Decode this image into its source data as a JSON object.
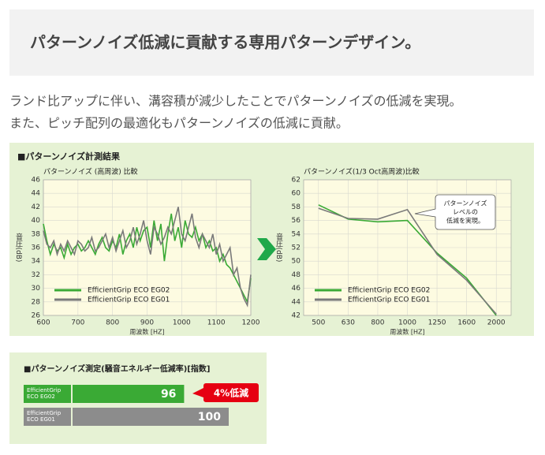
{
  "header": {
    "title": "パターンノイズ低減に貢献する専用パターンデザイン。"
  },
  "text": {
    "lines": [
      "ランド比アップに伴い、溝容積が減少したことでパターンノイズの低減を実現。",
      "また、ピッチ配列の最適化もパターンノイズの低減に貢献。"
    ]
  },
  "panel": {
    "title": "■パターンノイズ計測結果"
  },
  "chart_data": [
    {
      "type": "line",
      "title": "パターンノイズ (高周波) 比較",
      "x_label": "周波数 [HZ]",
      "y_label": "音圧(dB)",
      "x": [
        600,
        610,
        620,
        630,
        640,
        650,
        660,
        670,
        680,
        690,
        700,
        710,
        720,
        730,
        740,
        750,
        760,
        770,
        780,
        790,
        800,
        810,
        820,
        830,
        840,
        850,
        860,
        870,
        880,
        890,
        900,
        910,
        920,
        930,
        940,
        950,
        960,
        970,
        980,
        990,
        1000,
        1010,
        1020,
        1030,
        1040,
        1050,
        1060,
        1070,
        1080,
        1090,
        1100,
        1110,
        1120,
        1130,
        1140,
        1150,
        1160,
        1170,
        1180,
        1190,
        1200
      ],
      "series": [
        {
          "name": "EfficientGrip ECO EG02",
          "color": "#3aaa35",
          "values": [
            39.5,
            37,
            35,
            36.5,
            35.5,
            36,
            34.5,
            36.5,
            35,
            36,
            36.5,
            35.5,
            36,
            37,
            36,
            35,
            36.5,
            37.5,
            36,
            35.5,
            37,
            36,
            38,
            35,
            37,
            38,
            36,
            39,
            37,
            38.5,
            39,
            36,
            40,
            37,
            39.5,
            34,
            38,
            41,
            37,
            39,
            36,
            40,
            38,
            37.5,
            39,
            37,
            38,
            36,
            37,
            35.5,
            36,
            34,
            35,
            33.5,
            33,
            32,
            31,
            30,
            29,
            28,
            31.5
          ]
        },
        {
          "name": "EfficientGrip ECO EG01",
          "color": "#7a7a7a",
          "values": [
            38.5,
            36.5,
            36,
            37,
            35,
            36.5,
            35.5,
            37,
            36,
            35,
            37,
            36.5,
            35.5,
            36,
            37.5,
            35.5,
            36,
            37,
            38,
            36,
            37.5,
            35.5,
            37,
            38.5,
            36,
            37,
            39,
            36.5,
            38,
            40,
            37,
            35,
            39,
            38,
            36.5,
            37.5,
            39,
            38,
            40,
            42,
            38,
            37,
            39,
            41,
            37.5,
            36,
            38,
            37,
            36,
            38,
            35,
            36.5,
            34,
            35,
            36,
            32,
            33,
            30,
            28.5,
            27.5,
            32
          ]
        }
      ],
      "xlim": [
        600,
        1200
      ],
      "xticks": [
        600,
        700,
        800,
        900,
        1000,
        1100,
        1200
      ],
      "ylim": [
        26,
        46
      ],
      "yticks": [
        26,
        28,
        30,
        32,
        34,
        36,
        38,
        40,
        42,
        44,
        46
      ],
      "grid": true
    },
    {
      "type": "line",
      "title": "パターンノイズ(1/3 Oct高周波)比較",
      "x_label": "周波数 [HZ]",
      "y_label": "音圧(dB)",
      "categories": [
        "500",
        "630",
        "800",
        "1000",
        "1250",
        "1600",
        "2000"
      ],
      "series": [
        {
          "name": "EfficientGrip ECO EG02",
          "color": "#3aaa35",
          "values": [
            58.3,
            56.2,
            55.8,
            56.0,
            51.2,
            47.5,
            42.0
          ]
        },
        {
          "name": "EfficientGrip ECO EG01",
          "color": "#7a7a7a",
          "values": [
            57.8,
            56.3,
            56.2,
            57.6,
            51.0,
            47.2,
            42.2
          ]
        }
      ],
      "ylim": [
        42,
        62
      ],
      "yticks": [
        42,
        44,
        46,
        48,
        50,
        52,
        54,
        56,
        58,
        60,
        62
      ],
      "grid": true,
      "callout": [
        "パターンノイズ",
        "レベルの",
        "低減を実現。"
      ]
    },
    {
      "type": "hbar",
      "title": "■パターンノイズ測定(騒音エネルギー低減率)[指数]",
      "categories": [
        "EfficientGrip ECO EG02",
        "EfficientGrip ECO EG01"
      ],
      "values": [
        96,
        100
      ],
      "colors": [
        "#3aaa35",
        "#8c8c8c"
      ],
      "xlim": [
        86,
        100
      ],
      "annotation": "4%低減"
    }
  ]
}
